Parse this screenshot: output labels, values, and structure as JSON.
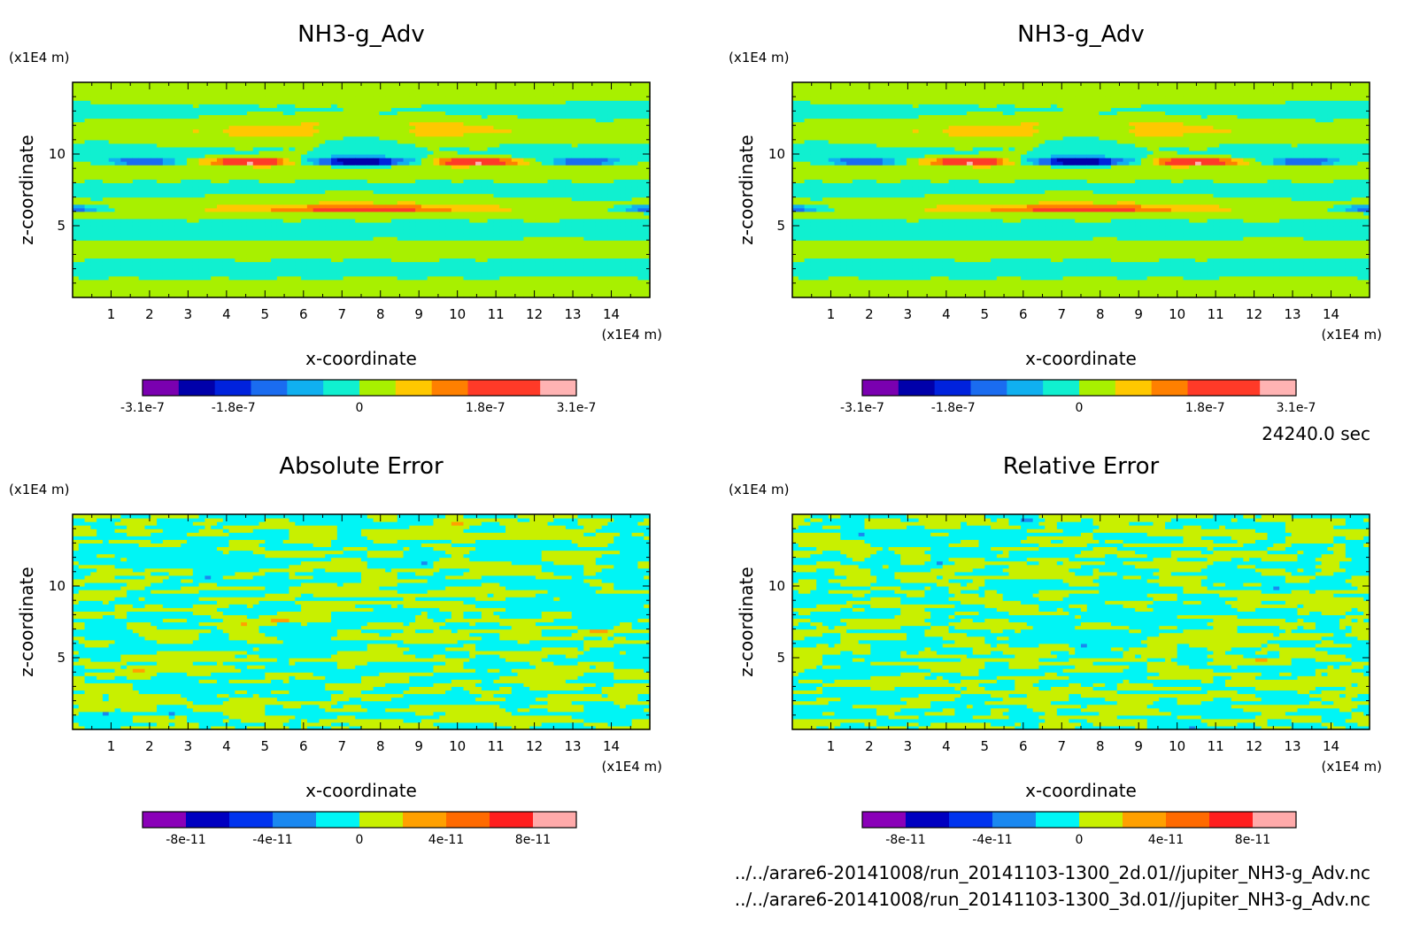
{
  "chart_data": [
    {
      "type": "heatmap",
      "title": "NH3-g_Adv",
      "xlabel": "x-coordinate",
      "ylabel": "z-coordinate",
      "x_unit": "(x1E4 m)",
      "y_unit": "(x1E4 m)",
      "x_ticks": [
        "1",
        "2",
        "3",
        "4",
        "5",
        "6",
        "7",
        "8",
        "9",
        "10",
        "11",
        "12",
        "13",
        "14"
      ],
      "y_ticks": [
        "5",
        "10"
      ],
      "xlim": [
        0,
        15
      ],
      "ylim": [
        0,
        15
      ],
      "colorbar": {
        "colors": [
          "#7a00b0",
          "#0000aa",
          "#0022dd",
          "#1a6cf0",
          "#10b0f0",
          "#10f0d0",
          "#a8f000",
          "#ffc800",
          "#ff8000",
          "#ff3a28",
          "#ff3a28",
          "#ffb3b3"
        ],
        "labels": [
          "-3.1e-7",
          "-1.8e-7",
          "0",
          "1.8e-7",
          "3.1e-7"
        ],
        "range": [
          -3.1e-07,
          3.1e-07
        ]
      },
      "pattern": "base"
    },
    {
      "type": "heatmap",
      "title": "NH3-g_Adv",
      "xlabel": "x-coordinate",
      "ylabel": "z-coordinate",
      "x_unit": "(x1E4 m)",
      "y_unit": "(x1E4 m)",
      "x_ticks": [
        "1",
        "2",
        "3",
        "4",
        "5",
        "6",
        "7",
        "8",
        "9",
        "10",
        "11",
        "12",
        "13",
        "14"
      ],
      "y_ticks": [
        "5",
        "10"
      ],
      "xlim": [
        0,
        15
      ],
      "ylim": [
        0,
        15
      ],
      "colorbar": {
        "colors": [
          "#7a00b0",
          "#0000aa",
          "#0022dd",
          "#1a6cf0",
          "#10b0f0",
          "#10f0d0",
          "#a8f000",
          "#ffc800",
          "#ff8000",
          "#ff3a28",
          "#ff3a28",
          "#ffb3b3"
        ],
        "labels": [
          "-3.1e-7",
          "-1.8e-7",
          "0",
          "1.8e-7",
          "3.1e-7"
        ],
        "range": [
          -3.1e-07,
          3.1e-07
        ]
      },
      "pattern": "base"
    },
    {
      "type": "heatmap",
      "title": "Absolute Error",
      "xlabel": "x-coordinate",
      "ylabel": "z-coordinate",
      "x_unit": "(x1E4 m)",
      "y_unit": "(x1E4 m)",
      "x_ticks": [
        "1",
        "2",
        "3",
        "4",
        "5",
        "6",
        "7",
        "8",
        "9",
        "10",
        "11",
        "12",
        "13",
        "14"
      ],
      "y_ticks": [
        "5",
        "10"
      ],
      "xlim": [
        0,
        15
      ],
      "ylim": [
        0,
        15
      ],
      "colorbar": {
        "colors": [
          "#8a00b8",
          "#0000c0",
          "#0033ee",
          "#1a88f0",
          "#00f5f5",
          "#c8f000",
          "#ffa000",
          "#ff6a00",
          "#ff1e1e",
          "#ffaaaa"
        ],
        "labels": [
          "-8e-11",
          "-4e-11",
          "0",
          "4e-11",
          "8e-11"
        ],
        "range": [
          -1e-10,
          1e-10
        ]
      },
      "pattern": "noise"
    },
    {
      "type": "heatmap",
      "title": "Relative Error",
      "xlabel": "x-coordinate",
      "ylabel": "z-coordinate",
      "x_unit": "(x1E4 m)",
      "y_unit": "(x1E4 m)",
      "x_ticks": [
        "1",
        "2",
        "3",
        "4",
        "5",
        "6",
        "7",
        "8",
        "9",
        "10",
        "11",
        "12",
        "13",
        "14"
      ],
      "y_ticks": [
        "5",
        "10"
      ],
      "xlim": [
        0,
        15
      ],
      "ylim": [
        0,
        15
      ],
      "colorbar": {
        "colors": [
          "#8a00b8",
          "#0000c0",
          "#0033ee",
          "#1a88f0",
          "#00f5f5",
          "#c8f000",
          "#ffa000",
          "#ff6a00",
          "#ff1e1e",
          "#ffaaaa"
        ],
        "labels": [
          "-8e-11",
          "-4e-11",
          "0",
          "4e-11",
          "8e-11"
        ],
        "range": [
          -1e-10,
          1e-10
        ]
      },
      "pattern": "noise2"
    }
  ],
  "info": {
    "time": "24240.0 sec",
    "file1": "../../arare6-20141008/run_20141103-1300_2d.01//jupiter_NH3-g_Adv.nc",
    "file2": "../../arare6-20141008/run_20141103-1300_3d.01//jupiter_NH3-g_Adv.nc"
  }
}
